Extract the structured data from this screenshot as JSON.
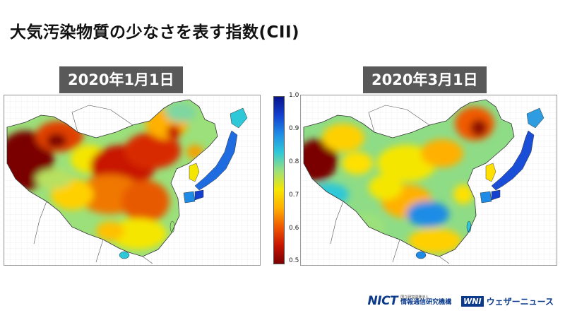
{
  "title": "大気汚染物質の少なさを表す指数(CII)",
  "panels": [
    {
      "date": "2020年1月1日"
    },
    {
      "date": "2020年3月1日"
    }
  ],
  "colorbar": {
    "min": 0.5,
    "max": 1.0,
    "ticks": [
      "1.0",
      "0.9",
      "0.8",
      "0.7",
      "0.6",
      "0.5"
    ],
    "colors": [
      "#7a0000",
      "#c81400",
      "#f05a00",
      "#ffb000",
      "#f5e600",
      "#9be07a",
      "#2ec8d8",
      "#1e8ce6",
      "#1440d0",
      "#08148c"
    ]
  },
  "logos": {
    "nict_mark": "NICT",
    "nict_small": "国立研究開発法人",
    "nict_name": "情報通信研究機構",
    "wni_mark": "WNI",
    "wni_name": "ウェザーニュース"
  }
}
